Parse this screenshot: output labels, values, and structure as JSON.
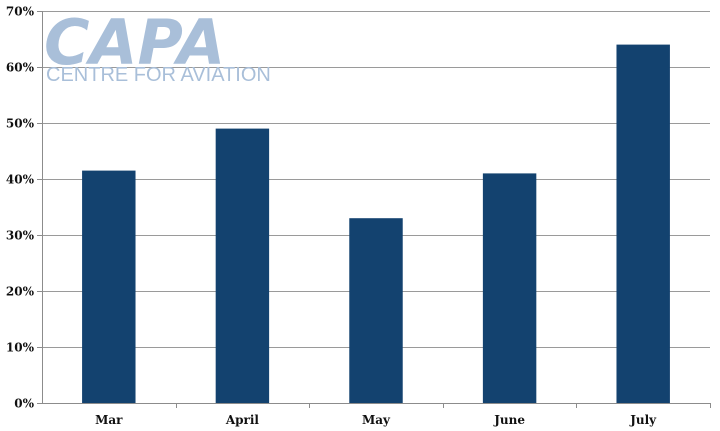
{
  "chart_data": {
    "type": "bar",
    "title": "",
    "xlabel": "",
    "ylabel": "",
    "categories": [
      "Mar",
      "April",
      "May",
      "June",
      "July"
    ],
    "values": [
      41.5,
      49,
      33,
      41,
      64
    ],
    "unit": "%",
    "ylim": [
      0,
      70
    ],
    "yticks": [
      "0%",
      "10%",
      "20%",
      "30%",
      "40%",
      "50%",
      "60%",
      "70%"
    ],
    "grid": true,
    "legend": "none",
    "bar_color": "#13426f"
  },
  "logo": {
    "text": "CAPA",
    "subtext": "CENTRE FOR AVIATION",
    "color": "#a9bfd9"
  }
}
